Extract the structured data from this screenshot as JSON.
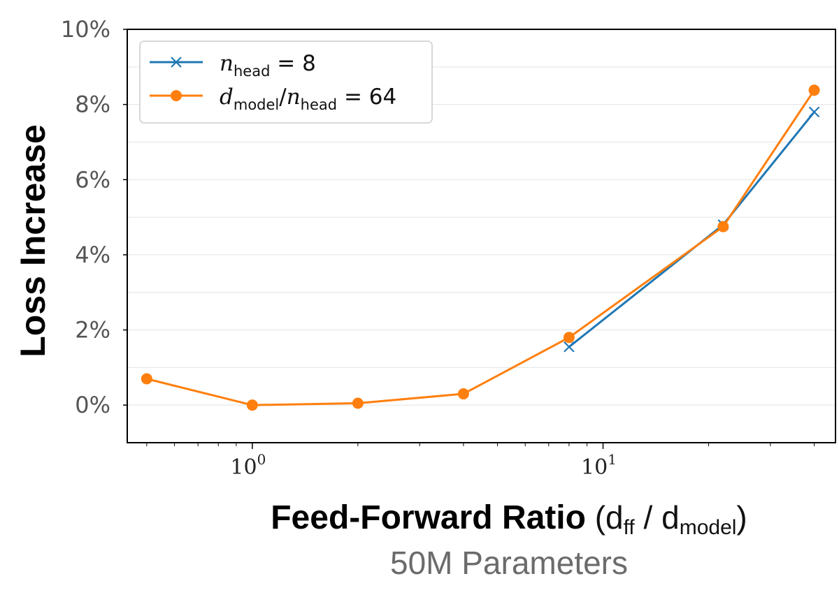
{
  "chart_data": {
    "type": "line",
    "xscale": "log",
    "x": [
      0.5,
      1,
      2,
      4,
      8,
      22,
      40
    ],
    "xlim": [
      0.44,
      46
    ],
    "ylim": [
      -1.0,
      10.0
    ],
    "yticks": [
      0,
      2,
      4,
      6,
      8,
      10
    ],
    "ytick_labels": [
      "0%",
      "2%",
      "4%",
      "6%",
      "8%",
      "10%"
    ],
    "xticks": [
      1,
      10
    ],
    "xtick_labels": [
      {
        "base": "10",
        "exp": "0"
      },
      {
        "base": "10",
        "exp": "1"
      }
    ],
    "grid": "horizontal",
    "legend_position": "top-left",
    "ylabel": "Loss Increase",
    "xlabel": {
      "bold": "Feed-Forward Ratio",
      "open": " (d",
      "sub1": "ff",
      "mid": " / d",
      "sub2": "model",
      "close": ")"
    },
    "subtitle": "50M Parameters",
    "series": [
      {
        "name": "n_head = 8",
        "legend": {
          "var": "n",
          "sub": "head",
          "rest": " = 8"
        },
        "color": "#1f77b4",
        "marker": "x",
        "x": [
          8,
          22,
          40
        ],
        "values": [
          1.55,
          4.8,
          7.8
        ]
      },
      {
        "name": "d_model/n_head = 64",
        "legend": {
          "var": "d",
          "sub": "model",
          "mid": "/",
          "var2": "n",
          "sub2": "head",
          "rest": " = 64"
        },
        "color": "#ff7f0e",
        "marker": "circle",
        "x": [
          0.5,
          1,
          2,
          4,
          8,
          22,
          40
        ],
        "values": [
          0.7,
          0.0,
          0.05,
          0.3,
          1.8,
          4.75,
          8.38
        ]
      }
    ]
  }
}
